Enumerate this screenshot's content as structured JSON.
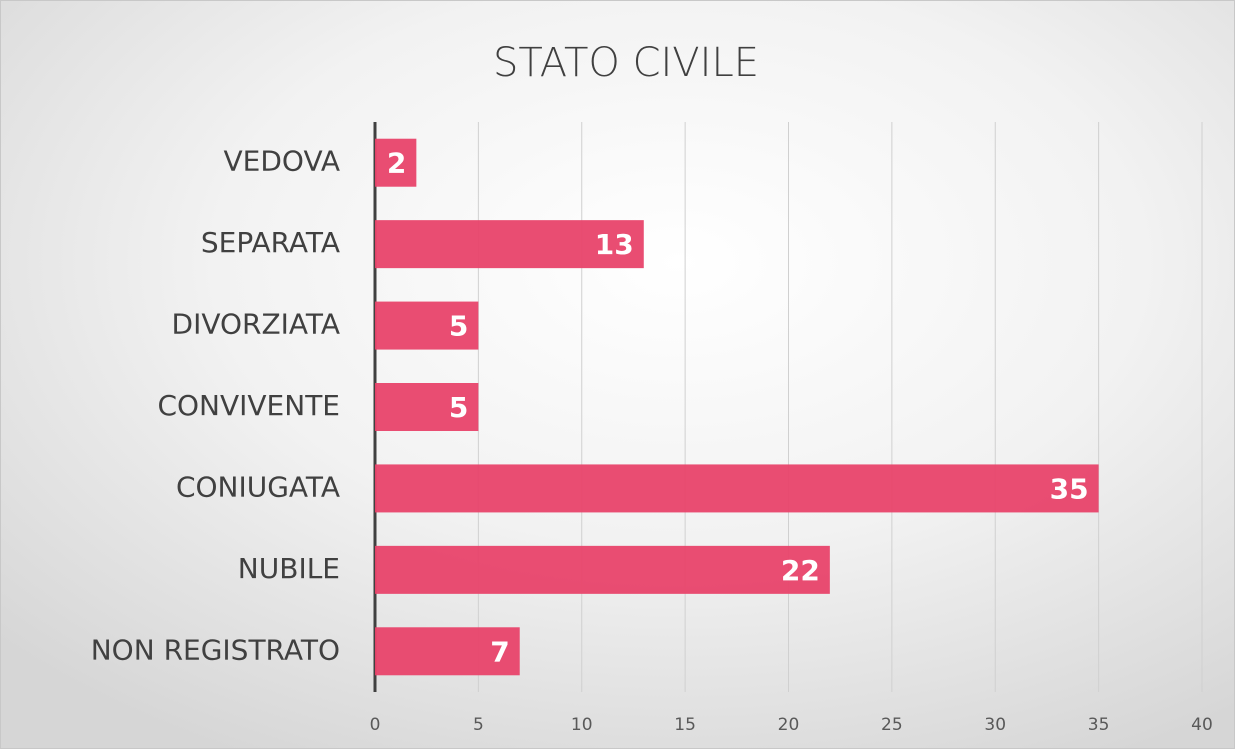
{
  "chart_data": {
    "type": "bar",
    "orientation": "horizontal",
    "title": "STATO CIVILE",
    "categories": [
      "VEDOVA",
      "SEPARATA",
      "DIVORZIATA",
      "CONVIVENTE",
      "CONIUGATA",
      "NUBILE",
      "NON REGISTRATO"
    ],
    "values": [
      2,
      13,
      5,
      5,
      35,
      22,
      7
    ],
    "color": "#e8436a",
    "xlim": [
      0,
      40
    ],
    "xticks": [
      0,
      5,
      10,
      15,
      20,
      25,
      30,
      35,
      40
    ],
    "grid": true
  }
}
